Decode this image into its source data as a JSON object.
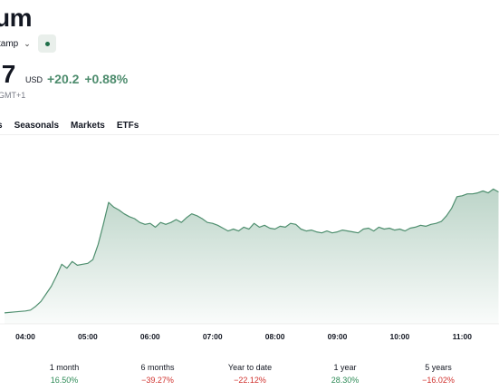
{
  "header": {
    "title": "um",
    "exchange": "tamp",
    "price": ".7",
    "currency": "USD",
    "change": "+20.2",
    "change_pct": "+0.88%",
    "timezone": "GMT+1"
  },
  "tabs": [
    {
      "label": "s"
    },
    {
      "label": "Seasonals"
    },
    {
      "label": "Markets"
    },
    {
      "label": "ETFs"
    }
  ],
  "colors": {
    "line": "#4f8f6f",
    "positive": "#2e8b57",
    "negative": "#d0312d",
    "accent_bg": "#e9efeb"
  },
  "chart_data": {
    "type": "area",
    "x_ticks": [
      "04:00",
      "05:00",
      "06:00",
      "07:00",
      "08:00",
      "09:00",
      "10:00",
      "11:00"
    ],
    "x": [
      "03:40",
      "03:50",
      "04:00",
      "04:05",
      "04:10",
      "04:15",
      "04:20",
      "04:25",
      "04:30",
      "04:35",
      "04:40",
      "04:45",
      "04:50",
      "04:55",
      "05:00",
      "05:05",
      "05:10",
      "05:15",
      "05:20",
      "05:25",
      "05:30",
      "05:35",
      "05:40",
      "05:45",
      "05:50",
      "05:55",
      "06:00",
      "06:05",
      "06:10",
      "06:15",
      "06:20",
      "06:25",
      "06:30",
      "06:35",
      "06:40",
      "06:45",
      "06:50",
      "06:55",
      "07:00",
      "07:05",
      "07:10",
      "07:15",
      "07:20",
      "07:25",
      "07:30",
      "07:35",
      "07:40",
      "07:45",
      "07:50",
      "07:55",
      "08:00",
      "08:05",
      "08:10",
      "08:15",
      "08:20",
      "08:25",
      "08:30",
      "08:35",
      "08:40",
      "08:45",
      "08:50",
      "08:55",
      "09:00",
      "09:05",
      "09:10",
      "09:15",
      "09:20",
      "09:25",
      "09:30",
      "09:35",
      "09:40",
      "09:45",
      "09:50",
      "09:55",
      "10:00",
      "10:05",
      "10:10",
      "10:15",
      "10:20",
      "10:25",
      "10:30",
      "10:35",
      "10:40",
      "10:45",
      "10:50",
      "10:55",
      "11:00",
      "11:05",
      "11:10",
      "11:15",
      "11:20",
      "11:25",
      "11:30",
      "11:35"
    ],
    "values": [
      2.0,
      3.0,
      4.0,
      5.0,
      9.0,
      14.0,
      22.0,
      30.0,
      41.0,
      53.0,
      49.0,
      56.0,
      52.0,
      53.0,
      54.0,
      58.0,
      74.0,
      95.0,
      118.0,
      113.0,
      110.0,
      106.0,
      103.0,
      101.0,
      97.0,
      95.0,
      96.0,
      92.0,
      97.0,
      95.0,
      97.0,
      100.0,
      97.0,
      102.0,
      106.0,
      104.0,
      101.0,
      97.0,
      96.0,
      94.0,
      91.0,
      88.0,
      90.0,
      88.0,
      92.0,
      90.0,
      96.0,
      92.0,
      94.0,
      91.0,
      90.0,
      93.0,
      92.0,
      96.0,
      95.0,
      90.0,
      88.0,
      89.0,
      87.0,
      86.0,
      88.0,
      86.0,
      87.0,
      89.0,
      88.0,
      87.0,
      86.0,
      90.0,
      91.0,
      88.0,
      92.0,
      90.0,
      91.0,
      89.0,
      90.0,
      88.0,
      91.0,
      92.0,
      94.0,
      93.0,
      95.0,
      96.0,
      98.0,
      104.0,
      112.0,
      124.0,
      125.0,
      127.0,
      127.0,
      128.0,
      130.0,
      128.0,
      132.0,
      129.0
    ]
  },
  "performance": [
    {
      "label": "1 month",
      "value": "16.50%",
      "sign": "pos"
    },
    {
      "label": "6 months",
      "value": "−39.27%",
      "sign": "neg"
    },
    {
      "label": "Year to date",
      "value": "−22.12%",
      "sign": "neg"
    },
    {
      "label": "1 year",
      "value": "28.30%",
      "sign": "pos"
    },
    {
      "label": "5 years",
      "value": "−16.02%",
      "sign": "neg"
    }
  ]
}
